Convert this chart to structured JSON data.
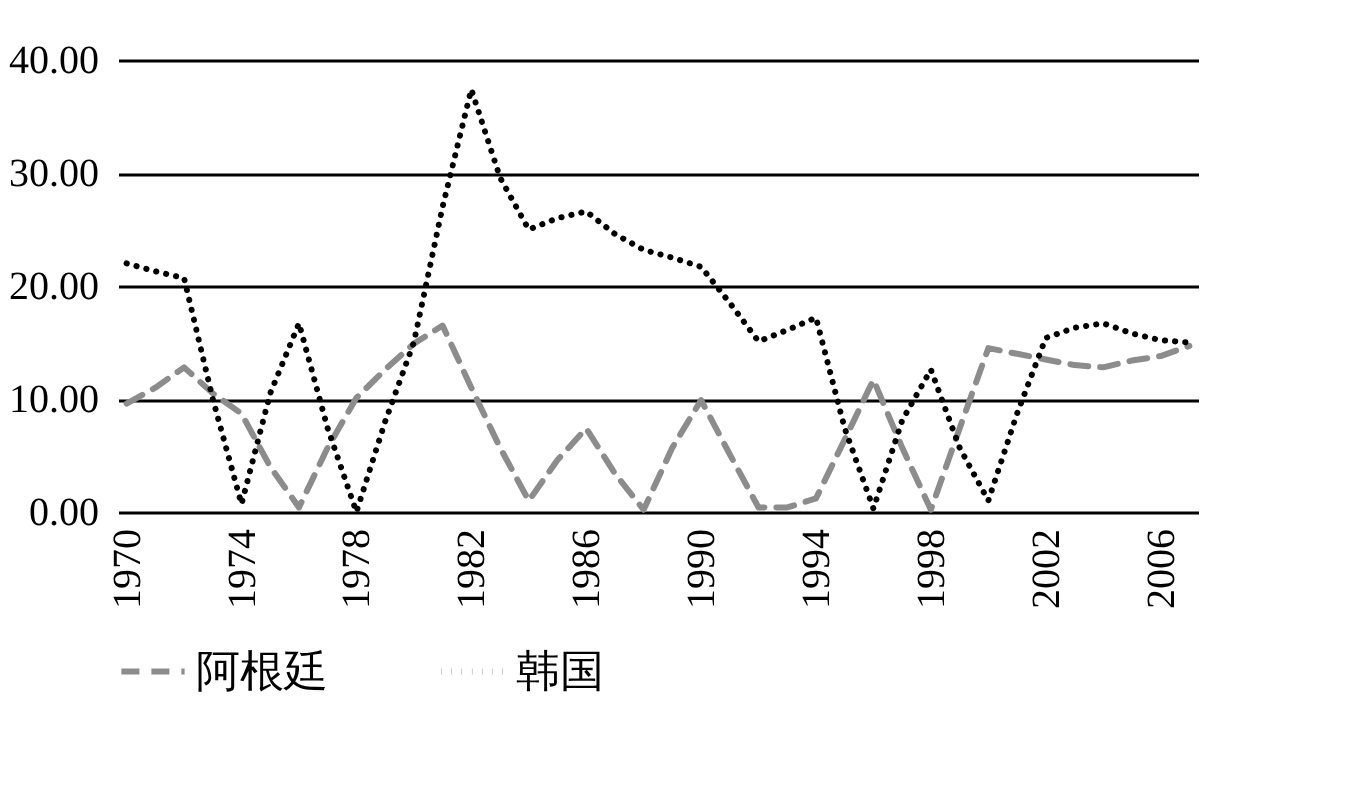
{
  "chart_data": {
    "type": "line",
    "categories": [
      "1970",
      null,
      null,
      null,
      "1974",
      null,
      null,
      null,
      "1978",
      null,
      null,
      null,
      "1982",
      null,
      null,
      null,
      "1986",
      null,
      null,
      null,
      "1990",
      null,
      null,
      null,
      "1994",
      null,
      null,
      null,
      "1998",
      null,
      null,
      null,
      "2002",
      null,
      null,
      null,
      "2006",
      null
    ],
    "series": [
      {
        "name": "阿根廷",
        "color": "#8c8c8c",
        "line_style": "dashed",
        "values": [
          9.6,
          11,
          12.8,
          10.5,
          8.7,
          4,
          0.4,
          5.7,
          10.1,
          12.6,
          14.9,
          16.5,
          11,
          5.7,
          1,
          4.6,
          7.4,
          3.4,
          0.2,
          5.7,
          9.9,
          5.1,
          0.4,
          0.4,
          1.2,
          6.4,
          11.7,
          5.7,
          0.2,
          7.4,
          14.5,
          14,
          13.5,
          13,
          12.8,
          13.4,
          13.8,
          14.7
        ]
      },
      {
        "name": "韩国",
        "color": "#000000",
        "line_style": "dotted",
        "values": [
          22,
          21.3,
          20.7,
          10,
          0.7,
          10.5,
          16.7,
          7.4,
          0,
          8,
          15,
          27,
          37.4,
          29.6,
          25,
          26,
          26.6,
          24.6,
          23.2,
          22.5,
          21.7,
          18.5,
          15.1,
          16.1,
          17.2,
          7.4,
          0.3,
          8.1,
          12.6,
          5.7,
          1,
          8.7,
          15.4,
          16.3,
          16.7,
          15.8,
          15.2,
          15
        ]
      }
    ],
    "ylim": [
      0,
      40
    ],
    "yticks": [
      {
        "value": 0,
        "label": "0.00"
      },
      {
        "value": 10,
        "label": "10.00"
      },
      {
        "value": 20,
        "label": "20.00"
      },
      {
        "value": 30,
        "label": "30.00"
      },
      {
        "value": 40,
        "label": "40.00"
      }
    ],
    "grid": "y",
    "legend": "bottom",
    "marker": "none"
  }
}
